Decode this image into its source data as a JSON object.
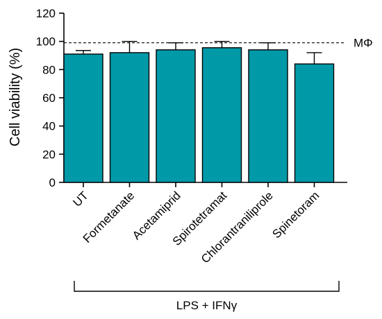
{
  "chart_data": {
    "type": "bar",
    "ylabel": "Cell viability (%)",
    "xlabel": "",
    "ylim": [
      0,
      120
    ],
    "yticks": [
      0,
      20,
      40,
      60,
      80,
      100,
      120
    ],
    "categories": [
      "UT",
      "Formetanate",
      "Acetamiprid",
      "Spirotetramat",
      "Chlorantraniliprole",
      "Spinetoram"
    ],
    "values": [
      91,
      92,
      94,
      95.5,
      94,
      84
    ],
    "errors": [
      2.5,
      8,
      5,
      4.5,
      5,
      8
    ],
    "reference_line": {
      "value": 99,
      "label": "MΦ",
      "style": "dashed"
    },
    "group_bracket": {
      "label": "LPS + IFNγ"
    },
    "bar_color": "#0099A8",
    "grid": false
  }
}
